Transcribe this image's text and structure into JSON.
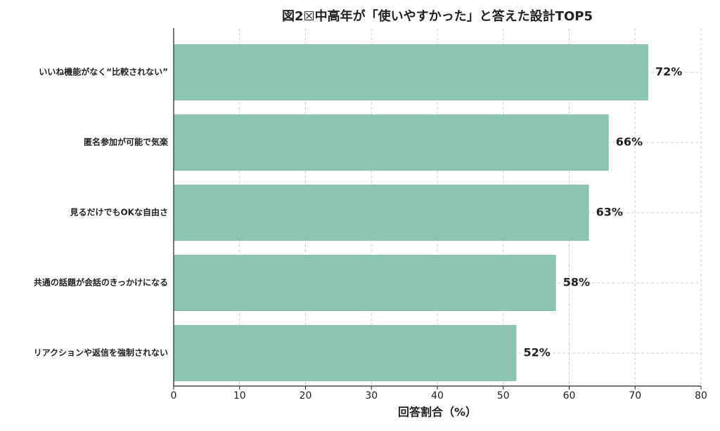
{
  "chart_data": {
    "type": "barh",
    "title": "図2☒中高年が「使いやすかった」と答えた設計TOP5",
    "categories": [
      "いいね機能がなく“比較されない”",
      "匿名参加が可能で気楽",
      "見るだけでもOKな自由さ",
      "共通の話題が会話のきっかけになる",
      "リアクションや返信を強制されない"
    ],
    "values": [
      72,
      66,
      63,
      58,
      52
    ],
    "value_labels": [
      "72%",
      "66%",
      "63%",
      "58%",
      "52%"
    ],
    "color": "#8cc4b4",
    "xlabel": "回答割合（%）",
    "xlim": [
      0,
      80
    ],
    "xticks": [
      0,
      10,
      20,
      30,
      40,
      50,
      60,
      70,
      80
    ],
    "grid": true
  }
}
